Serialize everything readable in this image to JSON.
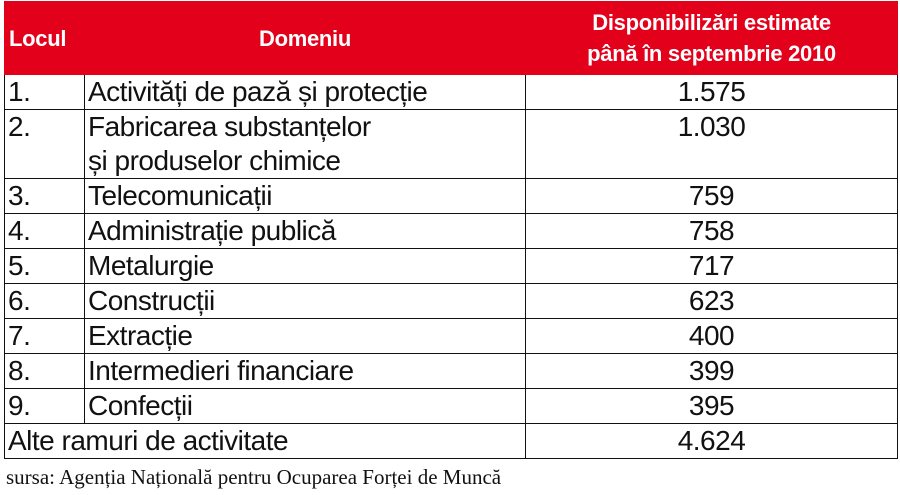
{
  "table": {
    "headers": {
      "rank": "Locul",
      "domain": "Domeniu",
      "estimate_line1": "Disponibilizări estimate",
      "estimate_line2": "până în septembrie 2010"
    },
    "rows": [
      {
        "rank": "1.",
        "domain": "Activități de pază și protecție",
        "value": "1.575"
      },
      {
        "rank": "2.",
        "domain_line1": "Fabricarea substanțelor",
        "domain_line2": "și produselor chimice",
        "value": "1.030"
      },
      {
        "rank": "3.",
        "domain": "Telecomunicații",
        "value": "759"
      },
      {
        "rank": "4.",
        "domain": "Administrație publică",
        "value": "758"
      },
      {
        "rank": "5.",
        "domain": "Metalurgie",
        "value": "717"
      },
      {
        "rank": "6.",
        "domain": "Construcții",
        "value": "623"
      },
      {
        "rank": "7.",
        "domain": "Extracție",
        "value": "400"
      },
      {
        "rank": "8.",
        "domain": "Intermedieri financiare",
        "value": "399"
      },
      {
        "rank": "9.",
        "domain": "Confecții",
        "value": "395"
      }
    ],
    "other": {
      "label": "Alte ramuri de activitate",
      "value": "4.624"
    }
  },
  "source": "sursa: Agenția Națională pentru Ocuparea Forței de Muncă",
  "colors": {
    "header_bg": "#e3001b",
    "header_text": "#ffffff",
    "border": "#111111"
  }
}
